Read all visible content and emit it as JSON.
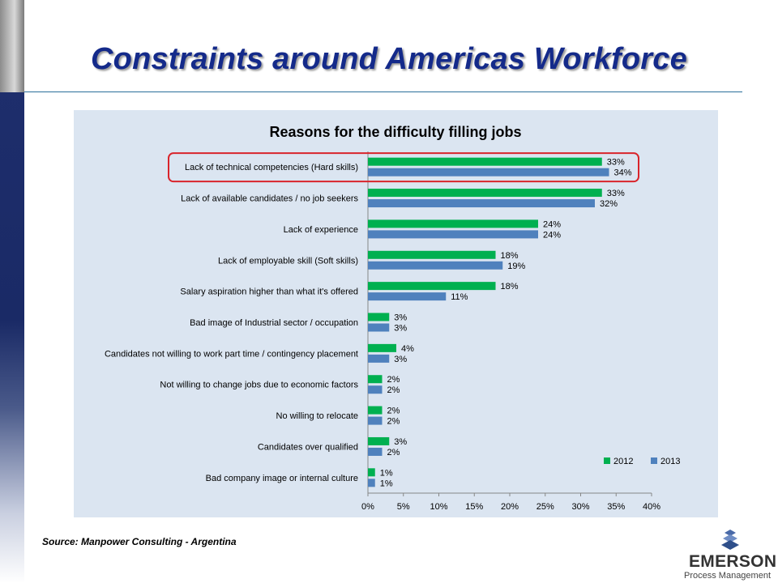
{
  "slide": {
    "title": "Constraints around Americas Workforce",
    "source": "Source: Manpower  Consulting - Argentina",
    "logo_name": "EMERSON",
    "logo_sub": "Process Management",
    "colors": {
      "title": "#142a8a",
      "panel": "#dbe5f1",
      "highlight": "#d9242b"
    }
  },
  "chart_data": {
    "type": "bar",
    "orientation": "horizontal",
    "title": "Reasons for the difficulty filling jobs",
    "categories": [
      "Lack of technical competencies (Hard skills)",
      "Lack of available candidates / no job seekers",
      "Lack of experience",
      "Lack of employable skill (Soft skills)",
      "Salary aspiration higher than what it's offered",
      "Bad image of Industrial sector / occupation",
      "Candidates not willing to work part time / contingency placement",
      "Not willing to change jobs due to economic factors",
      "No willing to relocate",
      "Candidates over qualified",
      "Bad company image or internal culture"
    ],
    "series": [
      {
        "name": "2012",
        "color": "#00b050",
        "values": [
          33,
          33,
          24,
          18,
          18,
          3,
          4,
          2,
          2,
          3,
          1
        ]
      },
      {
        "name": "2013",
        "color": "#4f81bd",
        "values": [
          34,
          32,
          24,
          19,
          11,
          3,
          3,
          2,
          2,
          2,
          1
        ]
      }
    ],
    "xlim": [
      0,
      40
    ],
    "xticks": [
      "0%",
      "5%",
      "10%",
      "15%",
      "20%",
      "25%",
      "30%",
      "35%",
      "40%"
    ],
    "value_suffix": "%",
    "legend_position": "bottom-right",
    "highlighted_category_index": 0
  }
}
